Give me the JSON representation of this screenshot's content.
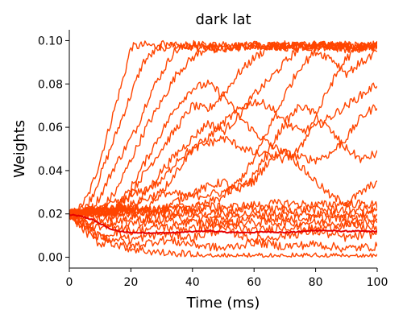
{
  "chart_data": {
    "type": "line",
    "title": "dark lat",
    "xlabel": "Time (ms)",
    "ylabel": "Weights",
    "xlim": [
      0,
      100
    ],
    "ylim": [
      -0.005,
      0.105
    ],
    "xticks": [
      0,
      20,
      40,
      60,
      80,
      100
    ],
    "yticks": [
      0.0,
      0.02,
      0.04,
      0.06,
      0.08,
      0.1
    ],
    "xtick_labels": [
      "0",
      "20",
      "40",
      "60",
      "80",
      "100"
    ],
    "ytick_labels": [
      "0.00",
      "0.02",
      "0.04",
      "0.06",
      "0.08",
      "0.10"
    ],
    "grid": false,
    "legend": "none",
    "colors": {
      "traces": "#ff4500",
      "mean": "#e60000"
    },
    "series": [
      {
        "role": "mean",
        "x": [
          0,
          2,
          4,
          6,
          8,
          10,
          12,
          14,
          16,
          18,
          20,
          25,
          30,
          35,
          40,
          45,
          50,
          55,
          60,
          65,
          70,
          75,
          80,
          85,
          90,
          95,
          100
        ],
        "values": [
          0.0195,
          0.0193,
          0.0188,
          0.018,
          0.017,
          0.0155,
          0.014,
          0.0128,
          0.012,
          0.0116,
          0.0114,
          0.0113,
          0.0112,
          0.0114,
          0.0118,
          0.0122,
          0.0116,
          0.0114,
          0.0115,
          0.0118,
          0.0114,
          0.0118,
          0.0124,
          0.0122,
          0.012,
          0.012,
          0.0119
        ]
      },
      {
        "role": "trace",
        "x": [
          0,
          3,
          6,
          9,
          12,
          15,
          18,
          20,
          25,
          30,
          40,
          50,
          60,
          70,
          80,
          90,
          100
        ],
        "values": [
          0.02,
          0.022,
          0.028,
          0.04,
          0.055,
          0.07,
          0.085,
          0.097,
          0.098,
          0.097,
          0.098,
          0.097,
          0.098,
          0.097,
          0.098,
          0.097,
          0.098
        ]
      },
      {
        "role": "trace",
        "x": [
          0,
          5,
          8,
          12,
          16,
          20,
          24,
          30,
          40,
          50,
          60,
          70,
          80,
          90,
          100
        ],
        "values": [
          0.02,
          0.022,
          0.03,
          0.045,
          0.06,
          0.075,
          0.09,
          0.098,
          0.097,
          0.096,
          0.098,
          0.097,
          0.098,
          0.097,
          0.098
        ]
      },
      {
        "role": "trace",
        "x": [
          0,
          6,
          10,
          14,
          18,
          22,
          26,
          30,
          34,
          40,
          50,
          60,
          70,
          80,
          90,
          100
        ],
        "values": [
          0.02,
          0.02,
          0.028,
          0.04,
          0.05,
          0.06,
          0.075,
          0.085,
          0.095,
          0.098,
          0.096,
          0.098,
          0.097,
          0.098,
          0.096,
          0.097
        ]
      },
      {
        "role": "trace",
        "x": [
          0,
          10,
          15,
          20,
          25,
          30,
          35,
          40,
          45,
          50,
          60,
          70,
          80,
          90,
          100
        ],
        "values": [
          0.02,
          0.022,
          0.03,
          0.045,
          0.06,
          0.072,
          0.085,
          0.092,
          0.097,
          0.098,
          0.097,
          0.098,
          0.097,
          0.098,
          0.097
        ]
      },
      {
        "role": "trace",
        "x": [
          0,
          15,
          20,
          25,
          30,
          35,
          40,
          45,
          50,
          55,
          60,
          65,
          70,
          80,
          90,
          100
        ],
        "values": [
          0.02,
          0.022,
          0.03,
          0.04,
          0.05,
          0.06,
          0.07,
          0.068,
          0.075,
          0.085,
          0.092,
          0.097,
          0.098,
          0.097,
          0.098,
          0.097
        ]
      },
      {
        "role": "trace",
        "x": [
          0,
          20,
          25,
          30,
          35,
          40,
          45,
          50,
          55,
          60,
          65,
          70,
          75,
          80,
          85,
          90,
          95,
          100
        ],
        "values": [
          0.02,
          0.022,
          0.03,
          0.04,
          0.048,
          0.055,
          0.062,
          0.058,
          0.065,
          0.075,
          0.082,
          0.09,
          0.097,
          0.098,
          0.097,
          0.098,
          0.097,
          0.098
        ]
      },
      {
        "role": "trace",
        "x": [
          0,
          15,
          20,
          25,
          30,
          35,
          40,
          45,
          50,
          55,
          60,
          65,
          70,
          75,
          80,
          85,
          90,
          95,
          100
        ],
        "values": [
          0.02,
          0.022,
          0.032,
          0.045,
          0.058,
          0.07,
          0.078,
          0.08,
          0.075,
          0.065,
          0.058,
          0.052,
          0.048,
          0.046,
          0.045,
          0.048,
          0.055,
          0.065,
          0.07
        ]
      },
      {
        "role": "trace",
        "x": [
          0,
          25,
          30,
          35,
          40,
          45,
          50,
          55,
          60,
          65,
          70,
          75,
          80,
          85,
          90,
          95,
          100
        ],
        "values": [
          0.02,
          0.022,
          0.03,
          0.04,
          0.05,
          0.055,
          0.062,
          0.068,
          0.072,
          0.07,
          0.062,
          0.058,
          0.06,
          0.065,
          0.07,
          0.075,
          0.08
        ]
      },
      {
        "role": "trace",
        "x": [
          0,
          30,
          40,
          50,
          55,
          60,
          65,
          70,
          75,
          80,
          85,
          90,
          95,
          100
        ],
        "values": [
          0.02,
          0.022,
          0.03,
          0.035,
          0.03,
          0.038,
          0.05,
          0.062,
          0.07,
          0.066,
          0.058,
          0.05,
          0.045,
          0.048
        ]
      },
      {
        "role": "trace",
        "x": [
          0,
          10,
          20,
          30,
          35,
          40,
          50,
          60,
          70,
          75,
          80,
          85,
          90,
          95,
          100
        ],
        "values": [
          0.02,
          0.022,
          0.028,
          0.035,
          0.045,
          0.05,
          0.055,
          0.048,
          0.045,
          0.05,
          0.065,
          0.08,
          0.092,
          0.097,
          0.098
        ]
      },
      {
        "role": "trace",
        "x": [
          0,
          40,
          50,
          55,
          60,
          65,
          70,
          75,
          80,
          85,
          90,
          95,
          100
        ],
        "values": [
          0.02,
          0.022,
          0.028,
          0.035,
          0.045,
          0.06,
          0.075,
          0.088,
          0.095,
          0.092,
          0.085,
          0.09,
          0.095
        ]
      },
      {
        "role": "trace",
        "x": [
          0,
          20,
          30,
          40,
          50,
          60,
          65,
          70,
          75,
          80,
          85,
          90,
          95,
          100
        ],
        "values": [
          0.02,
          0.024,
          0.03,
          0.028,
          0.03,
          0.035,
          0.045,
          0.05,
          0.042,
          0.035,
          0.028,
          0.025,
          0.03,
          0.035
        ]
      },
      {
        "role": "trace",
        "x": [
          0,
          5,
          10,
          20,
          30,
          40,
          50,
          60,
          70,
          80,
          90,
          100
        ],
        "values": [
          0.02,
          0.021,
          0.02,
          0.023,
          0.022,
          0.024,
          0.023,
          0.024,
          0.025,
          0.024,
          0.025,
          0.024
        ]
      },
      {
        "role": "trace",
        "x": [
          0,
          5,
          10,
          20,
          30,
          40,
          50,
          60,
          70,
          80,
          90,
          100
        ],
        "values": [
          0.02,
          0.022,
          0.022,
          0.022,
          0.022,
          0.022,
          0.022,
          0.022,
          0.022,
          0.022,
          0.022,
          0.022
        ]
      },
      {
        "role": "trace",
        "x": [
          0,
          5,
          10,
          20,
          30,
          40,
          50,
          60,
          70,
          80,
          90,
          100
        ],
        "values": [
          0.02,
          0.02,
          0.02,
          0.02,
          0.02,
          0.02,
          0.02,
          0.02,
          0.02,
          0.02,
          0.02,
          0.02
        ]
      },
      {
        "role": "trace",
        "x": [
          0,
          5,
          10,
          20,
          30,
          40,
          50,
          60,
          70,
          80,
          90,
          100
        ],
        "values": [
          0.02,
          0.019,
          0.018,
          0.018,
          0.018,
          0.018,
          0.018,
          0.018,
          0.018,
          0.018,
          0.018,
          0.018
        ]
      },
      {
        "role": "trace",
        "x": [
          0,
          5,
          10,
          20,
          30,
          40,
          50,
          60,
          70,
          80,
          90,
          100
        ],
        "values": [
          0.02,
          0.017,
          0.016,
          0.016,
          0.016,
          0.016,
          0.016,
          0.016,
          0.016,
          0.016,
          0.016,
          0.016
        ]
      },
      {
        "role": "trace",
        "x": [
          0,
          5,
          10,
          15,
          20,
          30,
          40,
          50,
          60,
          70,
          80,
          90,
          100
        ],
        "values": [
          0.02,
          0.015,
          0.01,
          0.006,
          0.004,
          0.002,
          0.001,
          0.0,
          0.0,
          0.0,
          0.0,
          0.0,
          0.0
        ]
      },
      {
        "role": "trace",
        "x": [
          0,
          5,
          10,
          15,
          20,
          30,
          40,
          50,
          60,
          70,
          80,
          90,
          100
        ],
        "values": [
          0.02,
          0.014,
          0.009,
          0.012,
          0.008,
          0.011,
          0.009,
          0.013,
          0.008,
          0.01,
          0.012,
          0.009,
          0.011
        ]
      },
      {
        "role": "trace",
        "x": [
          0,
          5,
          10,
          15,
          20,
          30,
          40,
          50,
          60,
          70,
          80,
          90,
          100
        ],
        "values": [
          0.02,
          0.012,
          0.006,
          0.009,
          0.005,
          0.008,
          0.006,
          0.004,
          0.007,
          0.005,
          0.006,
          0.004,
          0.005
        ]
      },
      {
        "role": "trace",
        "x": [
          0,
          5,
          10,
          15,
          20,
          30,
          40,
          50,
          60,
          70,
          80,
          90,
          100
        ],
        "values": [
          0.02,
          0.016,
          0.013,
          0.015,
          0.012,
          0.014,
          0.013,
          0.015,
          0.012,
          0.014,
          0.013,
          0.015,
          0.013
        ]
      }
    ]
  }
}
